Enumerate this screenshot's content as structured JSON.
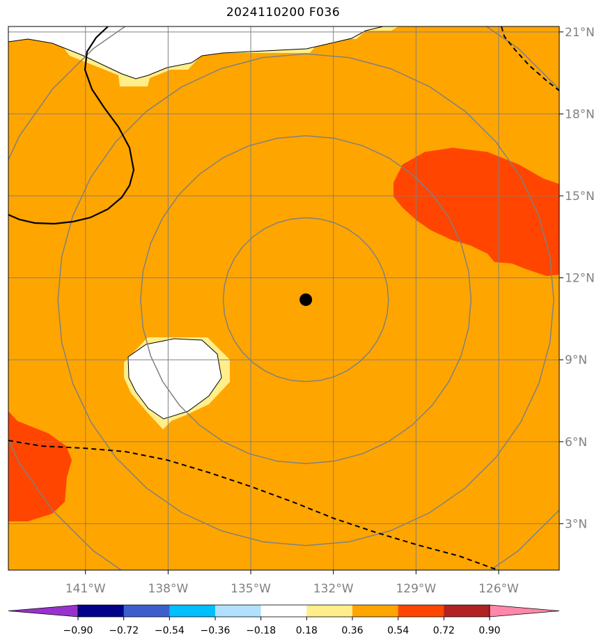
{
  "title": "2024110200 F036",
  "map": {
    "lon_range": [
      -143.8,
      -123.8
    ],
    "lat_range": [
      1.3,
      21.2
    ],
    "center": {
      "lon": -133.0,
      "lat": 11.2
    },
    "range_rings_deg": [
      3,
      6,
      9,
      12
    ],
    "lat_ticks": [
      {
        "value": 3,
        "label": "3°N"
      },
      {
        "value": 6,
        "label": "6°N"
      },
      {
        "value": 9,
        "label": "9°N"
      },
      {
        "value": 12,
        "label": "12°N"
      },
      {
        "value": 15,
        "label": "15°N"
      },
      {
        "value": 18,
        "label": "18°N"
      },
      {
        "value": 21,
        "label": "21°N"
      }
    ],
    "lon_ticks": [
      {
        "value": -141,
        "label": "141°W"
      },
      {
        "value": -138,
        "label": "138°W"
      },
      {
        "value": -135,
        "label": "135°W"
      },
      {
        "value": -132,
        "label": "132°W"
      },
      {
        "value": -129,
        "label": "129°W"
      },
      {
        "value": -126,
        "label": "126°W"
      }
    ],
    "background_color": "#ffa500"
  },
  "colorbar": {
    "colors": [
      "#9932cc",
      "#00008b",
      "#3a5fcd",
      "#00bfff",
      "#b0e2ff",
      "#ffffff",
      "#ffee8a",
      "#ffa500",
      "#ff4500",
      "#b22222",
      "#ff88aa"
    ],
    "ticks": [
      "−0.90",
      "−0.72",
      "−0.54",
      "−0.36",
      "−0.18",
      "0.18",
      "0.36",
      "0.54",
      "0.72",
      "0.90"
    ]
  }
}
